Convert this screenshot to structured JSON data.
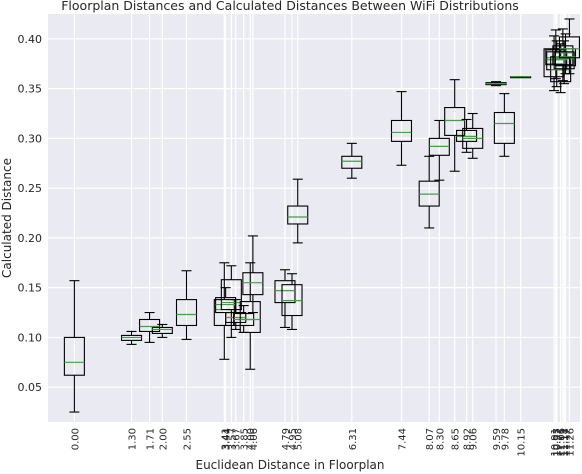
{
  "chart_data": {
    "type": "boxplot",
    "title": "Floorplan Distances and Calculated Distances Between WiFi Distributions",
    "xlabel": "Euclidean Distance in Floorplan",
    "ylabel": "Calculated Distance",
    "ylim": [
      0.015,
      0.425
    ],
    "xlim": [
      -0.6,
      11.5
    ],
    "yticks": [
      "0.05",
      "0.10",
      "0.15",
      "0.20",
      "0.25",
      "0.30",
      "0.35",
      "0.40"
    ],
    "grid": true,
    "colors": {
      "background": "#EAEAF2",
      "grid": "#FFFFFF",
      "box": "#000000",
      "median": "#4C9A4C"
    },
    "boxes": [
      {
        "label": "0.00",
        "x": 0.0,
        "whislo": 0.025,
        "q1": 0.062,
        "med": 0.075,
        "q3": 0.1,
        "whishi": 0.157
      },
      {
        "label": "1.30",
        "x": 1.3,
        "whislo": 0.093,
        "q1": 0.097,
        "med": 0.1,
        "q3": 0.102,
        "whishi": 0.106
      },
      {
        "label": "1.71",
        "x": 1.71,
        "whislo": 0.095,
        "q1": 0.106,
        "med": 0.111,
        "q3": 0.118,
        "whishi": 0.125
      },
      {
        "label": "2.00",
        "x": 2.0,
        "whislo": 0.1,
        "q1": 0.104,
        "med": 0.108,
        "q3": 0.11,
        "whishi": 0.113
      },
      {
        "label": "2.55",
        "x": 2.55,
        "whislo": 0.098,
        "q1": 0.112,
        "med": 0.123,
        "q3": 0.138,
        "whishi": 0.167
      },
      {
        "label": "3.41",
        "x": 3.41,
        "whislo": 0.078,
        "q1": 0.112,
        "med": 0.128,
        "q3": 0.138,
        "whishi": 0.175
      },
      {
        "label": "3.44",
        "x": 3.44,
        "whislo": 0.112,
        "q1": 0.125,
        "med": 0.133,
        "q3": 0.14,
        "whishi": 0.15
      },
      {
        "label": "3.57",
        "x": 3.57,
        "whislo": 0.1,
        "q1": 0.128,
        "med": 0.135,
        "q3": 0.158,
        "whishi": 0.172
      },
      {
        "label": "3.67",
        "x": 3.67,
        "whislo": 0.108,
        "q1": 0.115,
        "med": 0.12,
        "q3": 0.125,
        "whishi": 0.138
      },
      {
        "label": "3.85",
        "x": 3.85,
        "whislo": 0.105,
        "q1": 0.112,
        "med": 0.118,
        "q3": 0.124,
        "whishi": 0.132
      },
      {
        "label": "4.00",
        "x": 4.0,
        "whislo": 0.068,
        "q1": 0.105,
        "med": 0.118,
        "q3": 0.136,
        "whishi": 0.175
      },
      {
        "label": "4.06",
        "x": 4.06,
        "whislo": 0.125,
        "q1": 0.143,
        "med": 0.155,
        "q3": 0.165,
        "whishi": 0.202
      },
      {
        "label": "4.79",
        "x": 4.79,
        "whislo": 0.11,
        "q1": 0.135,
        "med": 0.147,
        "q3": 0.157,
        "whishi": 0.168
      },
      {
        "label": "4.95",
        "x": 4.95,
        "whislo": 0.108,
        "q1": 0.122,
        "med": 0.137,
        "q3": 0.153,
        "whishi": 0.164
      },
      {
        "label": "5.08",
        "x": 5.08,
        "whislo": 0.195,
        "q1": 0.214,
        "med": 0.221,
        "q3": 0.232,
        "whishi": 0.259
      },
      {
        "label": "6.31",
        "x": 6.31,
        "whislo": 0.26,
        "q1": 0.27,
        "med": 0.277,
        "q3": 0.282,
        "whishi": 0.295
      },
      {
        "label": "7.44",
        "x": 7.44,
        "whislo": 0.273,
        "q1": 0.297,
        "med": 0.306,
        "q3": 0.318,
        "whishi": 0.347
      },
      {
        "label": "8.07",
        "x": 8.07,
        "whislo": 0.21,
        "q1": 0.232,
        "med": 0.244,
        "q3": 0.257,
        "whishi": 0.282
      },
      {
        "label": "8.30",
        "x": 8.3,
        "whislo": 0.258,
        "q1": 0.283,
        "med": 0.292,
        "q3": 0.3,
        "whishi": 0.318
      },
      {
        "label": "8.65",
        "x": 8.65,
        "whislo": 0.267,
        "q1": 0.303,
        "med": 0.318,
        "q3": 0.331,
        "whishi": 0.359
      },
      {
        "label": "8.92",
        "x": 8.92,
        "whislo": 0.286,
        "q1": 0.297,
        "med": 0.302,
        "q3": 0.308,
        "whishi": 0.319
      },
      {
        "label": "9.06",
        "x": 9.06,
        "whislo": 0.28,
        "q1": 0.29,
        "med": 0.3,
        "q3": 0.31,
        "whishi": 0.325
      },
      {
        "label": "9.59",
        "x": 9.59,
        "whislo": 0.353,
        "q1": 0.354,
        "med": 0.355,
        "q3": 0.356,
        "whishi": 0.357
      },
      {
        "label": "9.78",
        "x": 9.78,
        "whislo": 0.282,
        "q1": 0.295,
        "med": 0.315,
        "q3": 0.326,
        "whishi": 0.345
      },
      {
        "label": "10.15",
        "x": 10.15,
        "whislo": 0.362,
        "q1": 0.362,
        "med": 0.362,
        "q3": 0.362,
        "whishi": 0.362
      },
      {
        "label": "10.91",
        "x": 10.91,
        "whislo": 0.348,
        "q1": 0.362,
        "med": 0.375,
        "q3": 0.39,
        "whishi": 0.403
      },
      {
        "label": "10.95",
        "x": 10.95,
        "whislo": 0.36,
        "q1": 0.374,
        "med": 0.381,
        "q3": 0.389,
        "whishi": 0.409
      },
      {
        "label": "10.97",
        "x": 10.97,
        "whislo": 0.352,
        "q1": 0.369,
        "med": 0.379,
        "q3": 0.387,
        "whishi": 0.398
      },
      {
        "label": "11.06",
        "x": 11.06,
        "whislo": 0.346,
        "q1": 0.357,
        "med": 0.369,
        "q3": 0.382,
        "whishi": 0.395
      },
      {
        "label": "11.11",
        "x": 11.11,
        "whislo": 0.358,
        "q1": 0.374,
        "med": 0.386,
        "q3": 0.393,
        "whishi": 0.41
      },
      {
        "label": "11.14",
        "x": 11.14,
        "whislo": 0.355,
        "q1": 0.37,
        "med": 0.38,
        "q3": 0.387,
        "whishi": 0.398
      },
      {
        "label": "11.17",
        "x": 11.17,
        "whislo": 0.365,
        "q1": 0.373,
        "med": 0.382,
        "q3": 0.39,
        "whishi": 0.405
      },
      {
        "label": "11.26",
        "x": 11.26,
        "whislo": 0.365,
        "q1": 0.381,
        "med": 0.39,
        "q3": 0.402,
        "whishi": 0.42
      }
    ]
  }
}
